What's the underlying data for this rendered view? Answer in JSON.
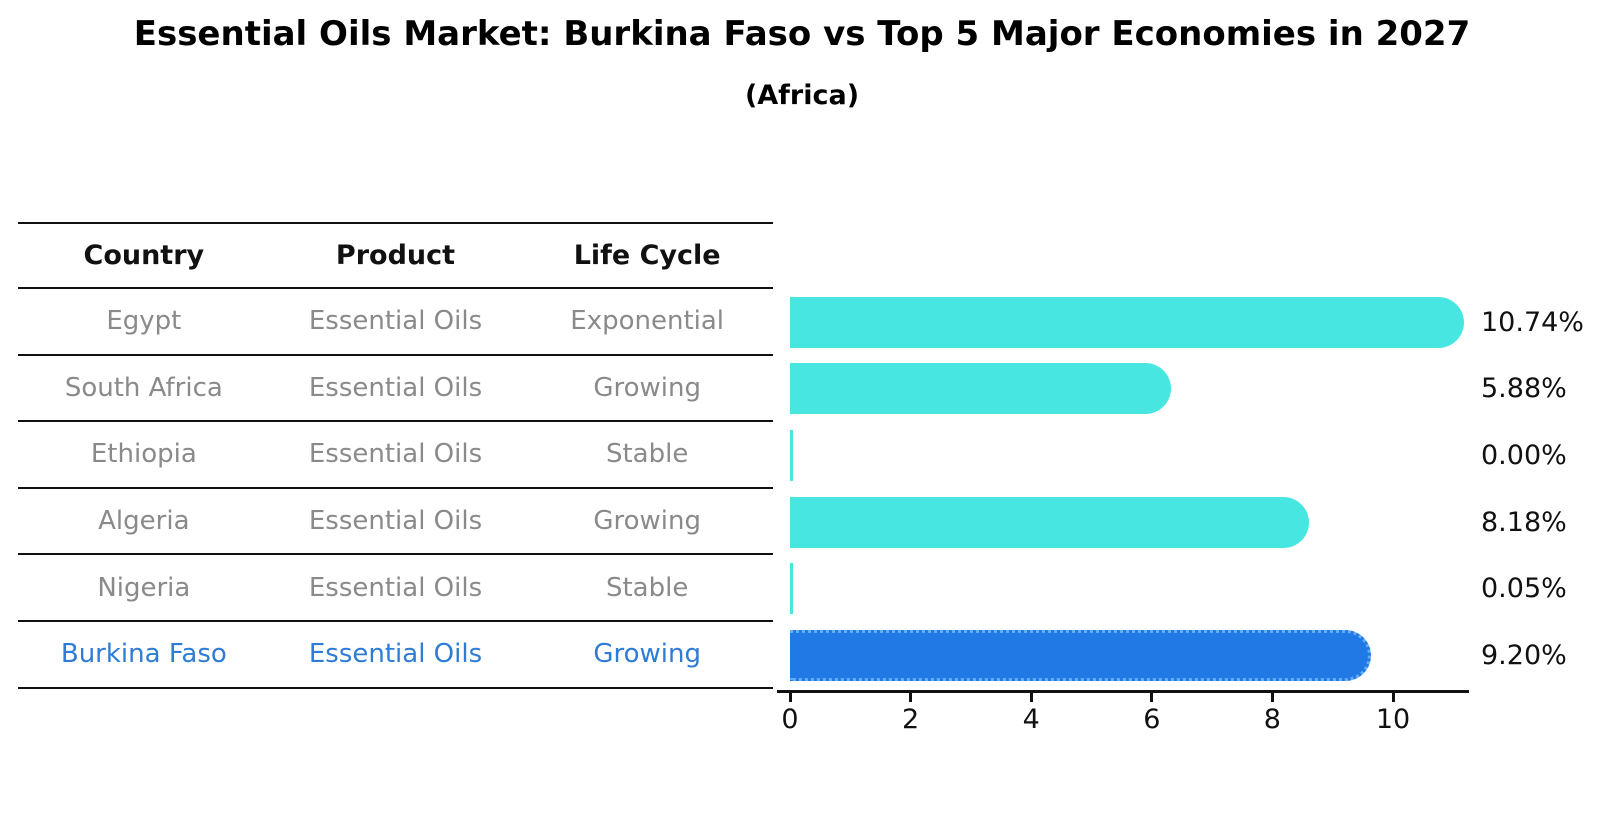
{
  "title": "Essential Oils Market: Burkina Faso vs Top 5 Major Economies in 2027",
  "subtitle": "(Africa)",
  "table": {
    "headers": [
      "Country",
      "Product",
      "Life Cycle"
    ],
    "rows": [
      {
        "country": "Egypt",
        "product": "Essential Oils",
        "life_cycle": "Exponential",
        "highlight": false
      },
      {
        "country": "South Africa",
        "product": "Essential Oils",
        "life_cycle": "Growing",
        "highlight": false
      },
      {
        "country": "Ethiopia",
        "product": "Essential Oils",
        "life_cycle": "Stable",
        "highlight": false
      },
      {
        "country": "Algeria",
        "product": "Essential Oils",
        "life_cycle": "Growing",
        "highlight": false
      },
      {
        "country": "Nigeria",
        "product": "Essential Oils",
        "life_cycle": "Stable",
        "highlight": false
      },
      {
        "country": "Burkina Faso",
        "product": "Essential Oils",
        "life_cycle": "Growing",
        "highlight": true
      }
    ]
  },
  "chart_data": {
    "type": "bar",
    "orientation": "horizontal",
    "title": "Essential Oils Market: Burkina Faso vs Top 5 Major Economies in 2027",
    "subtitle": "(Africa)",
    "categories": [
      "Egypt",
      "South Africa",
      "Ethiopia",
      "Algeria",
      "Nigeria",
      "Burkina Faso"
    ],
    "values": [
      10.74,
      5.88,
      0.0,
      8.18,
      0.05,
      9.2
    ],
    "bar_labels": [
      "10.74%",
      "5.88%",
      "0.00%",
      "8.18%",
      "0.05%",
      "9.20%"
    ],
    "x_ticks": [
      0,
      2,
      4,
      6,
      8,
      10
    ],
    "x_tick_labels": [
      "0",
      "2",
      "4",
      "6",
      "8",
      "10"
    ],
    "xlim": [
      -0.23,
      11.26
    ],
    "grid": false,
    "legend": "none",
    "highlight_index": 5
  },
  "colors": {
    "bar": "#47e6e0",
    "highlight_bar": "#2179e6",
    "highlight_border": "#64aef5",
    "highlight_text": "#2e7cd6",
    "table_text": "#8a8a8a",
    "header_text": "#111111",
    "axis": "#111111"
  }
}
